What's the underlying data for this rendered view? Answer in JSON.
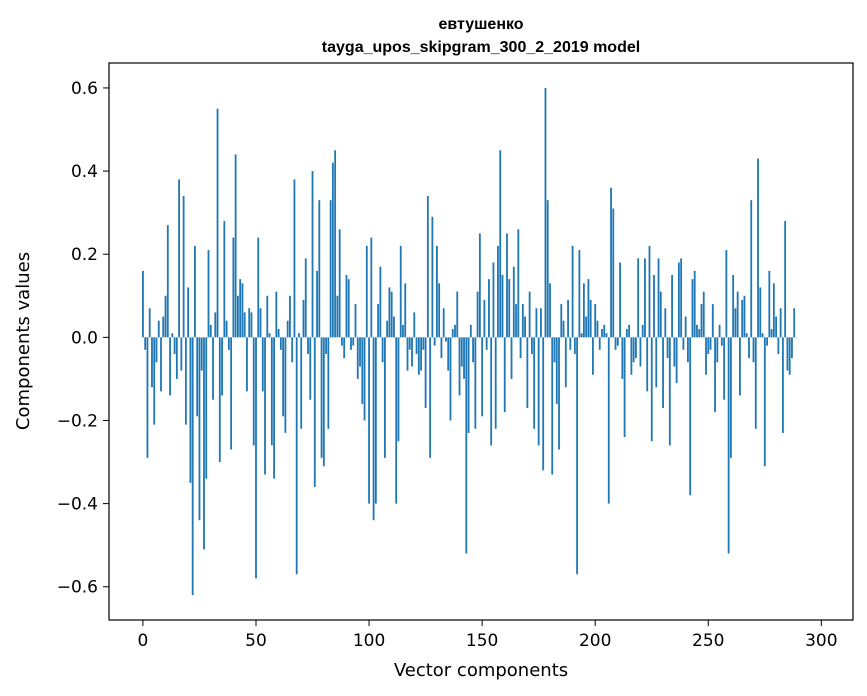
{
  "chart_data": {
    "type": "bar",
    "title": "евтушенко",
    "subtitle": "tayga_upos_skipgram_300_2_2019 model",
    "xlabel": "Vector components",
    "ylabel": "Components values",
    "xlim": [
      -15,
      314
    ],
    "ylim": [
      -0.68,
      0.66
    ],
    "xticks": [
      0,
      50,
      100,
      150,
      200,
      250,
      300
    ],
    "xtick_labels": [
      "0",
      "50",
      "100",
      "150",
      "200",
      "250",
      "300"
    ],
    "yticks": [
      0.6,
      0.4,
      0.2,
      0.0,
      -0.2,
      -0.4,
      -0.6
    ],
    "ytick_labels": [
      "0.6",
      "0.4",
      "0.2",
      "0.0",
      "−0.2",
      "−0.4",
      "−0.6"
    ],
    "bar_color": "#1f77b4",
    "grid": false,
    "values": [
      0.16,
      -0.03,
      -0.29,
      0.07,
      -0.12,
      -0.21,
      -0.06,
      0.04,
      -0.13,
      0.05,
      0.1,
      0.27,
      -0.14,
      0.01,
      -0.04,
      -0.1,
      0.38,
      -0.08,
      0.34,
      -0.21,
      0.12,
      -0.35,
      -0.62,
      0.22,
      -0.19,
      -0.44,
      -0.08,
      -0.51,
      -0.34,
      0.21,
      0.03,
      -0.15,
      0.06,
      0.55,
      -0.3,
      -0.14,
      0.28,
      0.04,
      -0.03,
      -0.27,
      0.24,
      0.44,
      0.1,
      0.14,
      0.13,
      0.06,
      -0.13,
      0.07,
      0.06,
      -0.26,
      -0.58,
      0.24,
      0.07,
      -0.13,
      -0.33,
      0.1,
      0.01,
      -0.26,
      -0.34,
      0.11,
      0.02,
      -0.03,
      -0.19,
      -0.23,
      0.04,
      0.1,
      -0.06,
      0.38,
      -0.57,
      0.01,
      -0.22,
      0.09,
      0.19,
      -0.04,
      -0.15,
      0.4,
      -0.36,
      0.16,
      0.33,
      -0.29,
      -0.31,
      -0.04,
      -0.22,
      0.33,
      0.42,
      0.45,
      0.1,
      0.26,
      -0.02,
      -0.05,
      0.15,
      0.14,
      -0.03,
      -0.02,
      0.08,
      -0.1,
      -0.07,
      -0.16,
      -0.2,
      0.22,
      -0.4,
      0.24,
      -0.44,
      -0.4,
      0.08,
      0.17,
      -0.06,
      -0.29,
      0.04,
      0.12,
      0.11,
      0.05,
      -0.4,
      -0.25,
      0.22,
      0.03,
      0.13,
      -0.08,
      -0.03,
      -0.07,
      0.06,
      -0.04,
      -0.09,
      -0.08,
      -0.03,
      -0.17,
      0.34,
      -0.29,
      0.29,
      -0.02,
      0.22,
      0.13,
      -0.05,
      0.07,
      -0.01,
      -0.08,
      -0.2,
      0.02,
      0.03,
      0.11,
      -0.14,
      -0.07,
      -0.1,
      -0.52,
      -0.23,
      0.03,
      -0.06,
      -0.22,
      0.11,
      0.25,
      -0.19,
      0.09,
      -0.03,
      0.14,
      -0.26,
      0.18,
      -0.22,
      0.22,
      0.45,
      0.15,
      -0.18,
      0.25,
      0.14,
      -0.1,
      0.17,
      0.08,
      0.26,
      -0.05,
      0.08,
      0.05,
      -0.17,
      0.11,
      -0.04,
      -0.22,
      0.07,
      -0.26,
      0.07,
      -0.32,
      0.6,
      0.33,
      0.13,
      -0.33,
      -0.06,
      -0.16,
      -0.27,
      0.08,
      0.04,
      -0.12,
      0.09,
      -0.03,
      0.22,
      -0.04,
      -0.57,
      0.21,
      0.01,
      0.13,
      0.05,
      0.14,
      0.09,
      -0.09,
      0.08,
      0.04,
      -0.03,
      0.02,
      0.03,
      0.01,
      -0.4,
      0.36,
      0.31,
      -0.03,
      -0.02,
      0.18,
      -0.1,
      -0.24,
      0.02,
      0.03,
      -0.09,
      -0.06,
      -0.05,
      0.19,
      -0.07,
      0.03,
      0.19,
      -0.13,
      0.22,
      -0.25,
      0.15,
      -0.12,
      0.19,
      0.11,
      -0.17,
      0.07,
      -0.05,
      -0.26,
      0.15,
      -0.07,
      -0.11,
      0.18,
      0.19,
      -0.03,
      0.05,
      -0.06,
      -0.38,
      0.14,
      0.16,
      0.03,
      0.02,
      0.08,
      0.11,
      -0.09,
      -0.04,
      -0.03,
      0.08,
      -0.18,
      -0.06,
      0.03,
      -0.02,
      -0.15,
      0.21,
      -0.52,
      -0.29,
      0.15,
      0.07,
      0.11,
      -0.14,
      0.09,
      0.1,
      0.01,
      -0.05,
      0.33,
      -0.06,
      -0.22,
      0.43,
      0.12,
      0.01,
      -0.31,
      -0.02,
      0.16,
      0.02,
      0.13,
      0.05,
      -0.04,
      0.07,
      -0.23,
      0.28,
      -0.08,
      -0.09,
      -0.05,
      0.07,
      0.0
    ]
  }
}
